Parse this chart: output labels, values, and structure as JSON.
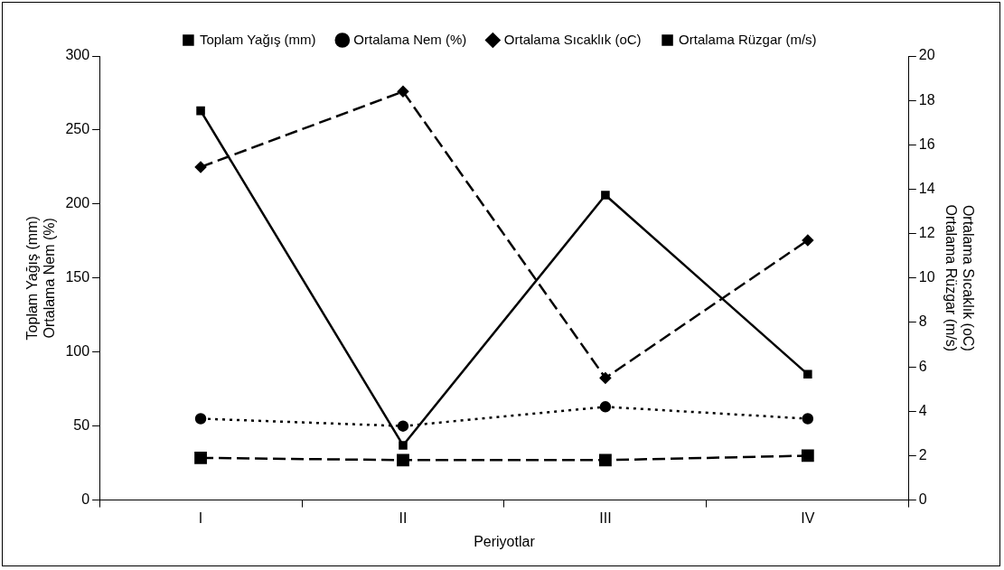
{
  "chart_data": {
    "type": "line",
    "xlabel": "Periyotlar",
    "ylabel": "Toplam Yağış (mm)\nOrtalama Nem (%)",
    "y2label": "Ortalama Sıcaklık (oC)\nOrtalama Rüzgar (m/s)",
    "categories": [
      "I",
      "II",
      "III",
      "IV"
    ],
    "series": [
      {
        "name": "Toplam Yağış (mm)",
        "color": "#000000",
        "values": [
          263,
          37,
          206,
          85
        ],
        "marker": "square",
        "line_style": "solid"
      },
      {
        "name": "Ortalama Nem (%)",
        "color": "#000000",
        "values": [
          55,
          50,
          63,
          55
        ],
        "marker": "circle",
        "line_style": "dotted"
      },
      {
        "name": "Ortalama Sıcaklık (oC)",
        "color": "#000000",
        "values": [
          15,
          18.4,
          5.5,
          11.7
        ],
        "marker": "diamond",
        "line_style": "dashed",
        "axis": "y2"
      },
      {
        "name": "Ortalama Rüzgar (m/s)",
        "color": "#000000",
        "values": [
          1.9,
          1.8,
          1.8,
          2.0
        ],
        "marker": "square",
        "line_style": "dashed",
        "axis": "y2"
      }
    ],
    "ylim": [
      0,
      300
    ],
    "yticks": [
      0,
      50,
      100,
      150,
      200,
      250,
      300
    ],
    "y2lim": [
      0,
      20
    ],
    "y2ticks": [
      0,
      2,
      4,
      6,
      8,
      10,
      12,
      14,
      16,
      18,
      20
    ],
    "grid": false,
    "legend": "top"
  }
}
